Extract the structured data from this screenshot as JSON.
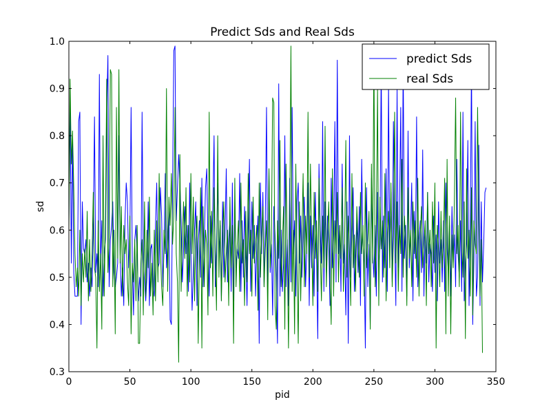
{
  "chart_data": {
    "type": "line",
    "title": "Predict Sds and Real Sds",
    "xlabel": "pid",
    "ylabel": "sd",
    "xlim": [
      0,
      350
    ],
    "ylim": [
      0.3,
      1.0
    ],
    "xticks": [
      0,
      50,
      100,
      150,
      200,
      250,
      300,
      350
    ],
    "yticks": [
      0.3,
      0.4,
      0.5,
      0.6,
      0.7,
      0.8,
      0.9,
      1.0
    ],
    "xtick_labels": [
      "0",
      "50",
      "100",
      "150",
      "200",
      "250",
      "300",
      "350"
    ],
    "ytick_labels": [
      "0.3",
      "0.4",
      "0.5",
      "0.6",
      "0.7",
      "0.8",
      "0.9",
      "1.0"
    ],
    "grid": false,
    "legend_position": "top-right",
    "series": [
      {
        "name": "predict Sds",
        "color": "#0000ff",
        "x_start": 0,
        "x_step": 1,
        "values": [
          0.62,
          0.86,
          0.53,
          0.8,
          0.51,
          0.46,
          0.46,
          0.46,
          0.83,
          0.85,
          0.4,
          0.66,
          0.56,
          0.55,
          0.58,
          0.49,
          0.53,
          0.46,
          0.52,
          0.48,
          0.6,
          0.84,
          0.51,
          0.55,
          0.48,
          0.93,
          0.52,
          0.62,
          0.46,
          0.55,
          0.58,
          0.85,
          0.97,
          0.48,
          0.58,
          0.61,
          0.66,
          0.51,
          0.48,
          0.5,
          0.53,
          0.8,
          0.55,
          0.46,
          0.52,
          0.44,
          0.62,
          0.7,
          0.66,
          0.52,
          0.58,
          0.86,
          0.53,
          0.42,
          0.58,
          0.61,
          0.55,
          0.45,
          0.5,
          0.46,
          0.85,
          0.54,
          0.49,
          0.45,
          0.5,
          0.66,
          0.44,
          0.56,
          0.57,
          0.48,
          0.46,
          0.61,
          0.7,
          0.52,
          0.53,
          0.69,
          0.63,
          0.48,
          0.56,
          0.72,
          0.52,
          0.58,
          0.64,
          0.41,
          0.4,
          0.69,
          0.98,
          0.99,
          0.62,
          0.69,
          0.76,
          0.7,
          0.62,
          0.49,
          0.56,
          0.65,
          0.55,
          0.61,
          0.47,
          0.7,
          0.56,
          0.43,
          0.51,
          0.6,
          0.66,
          0.44,
          0.57,
          0.62,
          0.5,
          0.71,
          0.48,
          0.58,
          0.69,
          0.73,
          0.57,
          0.46,
          0.63,
          0.53,
          0.65,
          0.8,
          0.48,
          0.56,
          0.7,
          0.55,
          0.61,
          0.45,
          0.66,
          0.5,
          0.59,
          0.73,
          0.49,
          0.58,
          0.62,
          0.47,
          0.7,
          0.45,
          0.66,
          0.52,
          0.56,
          0.54,
          0.72,
          0.47,
          0.62,
          0.5,
          0.65,
          0.55,
          0.44,
          0.6,
          0.75,
          0.47,
          0.66,
          0.54,
          0.61,
          0.46,
          0.57,
          0.63,
          0.36,
          0.7,
          0.55,
          0.68,
          0.48,
          0.62,
          0.86,
          0.46,
          0.73,
          0.51,
          0.57,
          0.42,
          0.65,
          0.59,
          0.5,
          0.36,
          0.91,
          0.46,
          0.6,
          0.47,
          0.53,
          0.8,
          0.48,
          0.58,
          0.44,
          0.71,
          0.49,
          0.86,
          0.55,
          0.62,
          0.46,
          0.66,
          0.7,
          0.53,
          0.63,
          0.5,
          0.59,
          0.67,
          0.48,
          0.56,
          0.7,
          0.44,
          0.63,
          0.52,
          0.61,
          0.46,
          0.68,
          0.55,
          0.37,
          0.74,
          0.6,
          0.53,
          0.83,
          0.47,
          0.66,
          0.51,
          0.63,
          0.57,
          0.44,
          0.71,
          0.52,
          0.59,
          0.83,
          0.49,
          0.96,
          0.55,
          0.61,
          0.47,
          0.74,
          0.53,
          0.57,
          0.42,
          0.66,
          0.36,
          0.8,
          0.5,
          0.6,
          0.69,
          0.47,
          0.56,
          0.62,
          0.51,
          0.65,
          0.44,
          0.75,
          0.58,
          0.53,
          0.35,
          0.69,
          0.48,
          0.57,
          0.4,
          0.71,
          0.55,
          0.5,
          0.61,
          0.46,
          0.68,
          0.52,
          0.57,
          0.96,
          0.49,
          0.63,
          0.52,
          0.73,
          0.47,
          0.91,
          0.55,
          0.68,
          0.49,
          0.83,
          0.59,
          0.44,
          0.9,
          0.52,
          0.64,
          0.86,
          0.47,
          0.97,
          0.54,
          0.61,
          0.46,
          0.81,
          0.52,
          0.59,
          0.7,
          0.45,
          0.64,
          0.54,
          0.84,
          0.48,
          0.58,
          0.62,
          0.51,
          0.77,
          0.46,
          0.6,
          0.53,
          0.68,
          0.49,
          0.57,
          0.55,
          0.47,
          0.63,
          0.51,
          0.59,
          0.45,
          0.66,
          0.53,
          0.58,
          0.49,
          0.62,
          0.47,
          0.7,
          0.56,
          0.51,
          0.61,
          0.46,
          0.65,
          0.53,
          0.59,
          0.48,
          0.75,
          0.55,
          0.5,
          0.62,
          0.47,
          0.85,
          0.45,
          0.53,
          0.57,
          0.79,
          0.44,
          0.61,
          0.96,
          0.4,
          0.54,
          0.83,
          0.46,
          0.5,
          0.78,
          0.44,
          0.66,
          0.49,
          0.57,
          0.68,
          0.69
        ]
      },
      {
        "name": "real Sds",
        "color": "#008000",
        "x_start": 0,
        "x_step": 1,
        "values": [
          0.6,
          0.92,
          0.74,
          0.81,
          0.69,
          0.55,
          0.48,
          0.52,
          0.46,
          0.6,
          0.44,
          0.55,
          0.49,
          0.56,
          0.5,
          0.64,
          0.45,
          0.58,
          0.47,
          0.55,
          0.68,
          0.52,
          0.5,
          0.35,
          0.62,
          0.47,
          0.55,
          0.39,
          0.8,
          0.46,
          0.63,
          0.92,
          0.51,
          0.58,
          0.94,
          0.93,
          0.48,
          0.6,
          0.38,
          0.86,
          0.54,
          0.94,
          0.53,
          0.65,
          0.46,
          0.61,
          0.55,
          0.58,
          0.49,
          0.44,
          0.63,
          0.38,
          0.53,
          0.49,
          0.58,
          0.45,
          0.61,
          0.36,
          0.36,
          0.53,
          0.58,
          0.42,
          0.66,
          0.46,
          0.6,
          0.52,
          0.67,
          0.46,
          0.53,
          0.42,
          0.6,
          0.45,
          0.62,
          0.49,
          0.72,
          0.56,
          0.48,
          0.44,
          0.6,
          0.55,
          0.9,
          0.47,
          0.67,
          0.61,
          0.72,
          0.57,
          0.63,
          0.86,
          0.55,
          0.49,
          0.32,
          0.76,
          0.47,
          0.58,
          0.66,
          0.54,
          0.69,
          0.46,
          0.61,
          0.49,
          0.72,
          0.55,
          0.67,
          0.45,
          0.58,
          0.63,
          0.36,
          0.54,
          0.69,
          0.35,
          0.65,
          0.48,
          0.6,
          0.57,
          0.42,
          0.85,
          0.52,
          0.64,
          0.46,
          0.69,
          0.55,
          0.43,
          0.8,
          0.5,
          0.62,
          0.45,
          0.58,
          0.66,
          0.49,
          0.55,
          0.6,
          0.44,
          0.67,
          0.52,
          0.61,
          0.36,
          0.71,
          0.48,
          0.57,
          0.62,
          0.47,
          0.7,
          0.53,
          0.58,
          0.44,
          0.64,
          0.49,
          0.72,
          0.55,
          0.6,
          0.46,
          0.67,
          0.53,
          0.57,
          0.61,
          0.43,
          0.7,
          0.5,
          0.59,
          0.65,
          0.48,
          0.56,
          0.62,
          0.41,
          0.73,
          0.52,
          0.58,
          0.88,
          0.87,
          0.44,
          0.39,
          0.62,
          0.54,
          0.79,
          0.48,
          0.57,
          0.65,
          0.39,
          0.74,
          0.56,
          0.35,
          0.61,
          0.99,
          0.47,
          0.6,
          0.38,
          0.74,
          0.52,
          0.36,
          0.66,
          0.45,
          0.59,
          0.72,
          0.48,
          0.63,
          0.55,
          0.85,
          0.5,
          0.74,
          0.58,
          0.44,
          0.68,
          0.54,
          0.62,
          0.47,
          0.71,
          0.56,
          0.45,
          0.63,
          0.52,
          0.82,
          0.48,
          0.58,
          0.66,
          0.5,
          0.4,
          0.73,
          0.46,
          0.62,
          0.55,
          0.68,
          0.49,
          0.61,
          0.54,
          0.69,
          0.47,
          0.57,
          0.79,
          0.5,
          0.63,
          0.55,
          0.44,
          0.72,
          0.52,
          0.59,
          0.47,
          0.65,
          0.58,
          0.5,
          0.68,
          0.55,
          0.61,
          0.46,
          0.7,
          0.52,
          0.58,
          0.64,
          0.39,
          0.74,
          0.53,
          0.99,
          0.48,
          0.61,
          0.9,
          0.44,
          0.67,
          0.56,
          0.62,
          0.5,
          0.72,
          0.45,
          0.59,
          0.64,
          0.52,
          0.7,
          0.48,
          0.58,
          0.85,
          0.53,
          0.66,
          0.47,
          0.61,
          0.55,
          0.75,
          0.5,
          0.63,
          0.58,
          0.44,
          0.69,
          0.54,
          0.6,
          0.48,
          0.66,
          0.55,
          0.62,
          0.5,
          0.71,
          0.46,
          0.59,
          0.65,
          0.52,
          0.57,
          0.62,
          0.44,
          0.68,
          0.55,
          0.6,
          0.48,
          0.66,
          0.53,
          0.7,
          0.35,
          0.61,
          0.56,
          0.48,
          0.64,
          0.52,
          0.58,
          0.71,
          0.38,
          0.75,
          0.46,
          0.63,
          0.38,
          0.59,
          0.52,
          0.67,
          0.88,
          0.55,
          0.61,
          0.48,
          0.85,
          0.58,
          0.5,
          0.66,
          0.37,
          0.73,
          0.54,
          0.6,
          0.46,
          0.69,
          0.42,
          0.62,
          0.57,
          0.55,
          0.86,
          0.63,
          0.46,
          0.58,
          0.34
        ]
      }
    ]
  }
}
